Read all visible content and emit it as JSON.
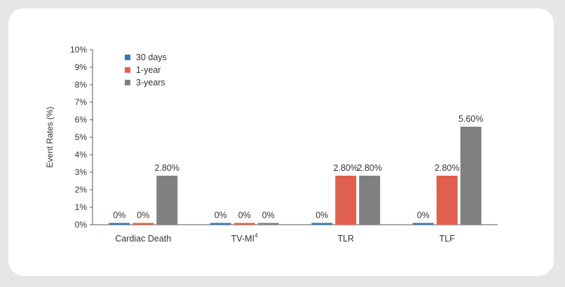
{
  "chart_data": {
    "type": "bar",
    "ylabel": "Event Rates (%)",
    "ylim": [
      0,
      10
    ],
    "yticks": [
      "0%",
      "1%",
      "2%",
      "3%",
      "4%",
      "5%",
      "6%",
      "7%",
      "8%",
      "9%",
      "10%"
    ],
    "categories": [
      "Cardiac Death",
      "TV-MI",
      "TLR",
      "TLF"
    ],
    "category_superscripts": [
      "",
      "4",
      "",
      ""
    ],
    "legend_position": "top-left",
    "grid": false,
    "series": [
      {
        "name": "30 days",
        "color": "#3a78b5",
        "values": [
          0,
          0,
          0,
          0
        ],
        "labels": [
          "0%",
          "0%",
          "0%",
          "0%"
        ]
      },
      {
        "name": "1-year",
        "color": "#e0604f",
        "values": [
          0,
          0,
          2.8,
          2.8
        ],
        "labels": [
          "0%",
          "0%",
          "2.80%",
          "2.80%"
        ]
      },
      {
        "name": "3-years",
        "color": "#808080",
        "values": [
          2.8,
          0,
          2.8,
          5.6
        ],
        "labels": [
          "2.80%",
          "0%",
          "2.80%",
          "5.60%"
        ]
      }
    ]
  }
}
